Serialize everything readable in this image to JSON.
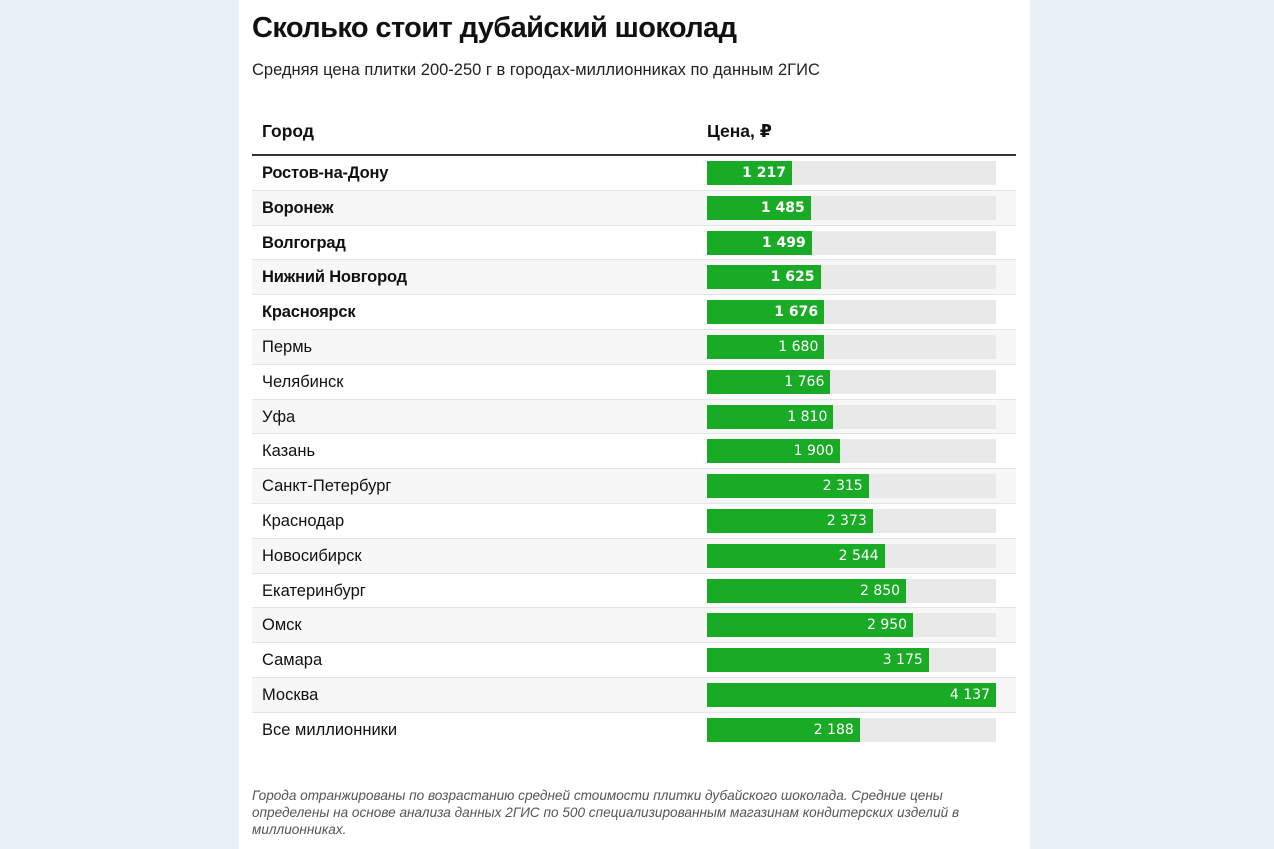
{
  "header": {
    "title": "Сколько стоит дубайский шоколад",
    "subtitle": "Средняя цена плитки 200-250 г в городах-миллионниках по данным 2ГИС"
  },
  "table": {
    "col_city": "Город",
    "col_price": "Цена, ₽"
  },
  "chart_data": {
    "type": "table",
    "title": "Сколько стоит дубайский шоколад",
    "subtitle": "Средняя цена плитки 200-250 г в городах-миллионниках по данным 2ГИС",
    "columns": [
      "Город",
      "Цена, ₽"
    ],
    "xlim": [
      0,
      4137
    ],
    "bar_color": "#1aab26",
    "track_color": "#e9e9e9",
    "rows": [
      {
        "city": "Ростов-на-Дону",
        "value": 1217,
        "label": "1 217",
        "bold": true
      },
      {
        "city": "Воронеж",
        "value": 1485,
        "label": "1 485",
        "bold": true
      },
      {
        "city": "Волгоград",
        "value": 1499,
        "label": "1 499",
        "bold": true
      },
      {
        "city": "Нижний Новгород",
        "value": 1625,
        "label": "1 625",
        "bold": true
      },
      {
        "city": "Красноярск",
        "value": 1676,
        "label": "1 676",
        "bold": true
      },
      {
        "city": "Пермь",
        "value": 1680,
        "label": "1 680",
        "bold": false
      },
      {
        "city": "Челябинск",
        "value": 1766,
        "label": "1 766",
        "bold": false
      },
      {
        "city": "Уфа",
        "value": 1810,
        "label": "1 810",
        "bold": false
      },
      {
        "city": "Казань",
        "value": 1900,
        "label": "1 900",
        "bold": false
      },
      {
        "city": "Санкт-Петербург",
        "value": 2315,
        "label": "2 315",
        "bold": false
      },
      {
        "city": "Краснодар",
        "value": 2373,
        "label": "2 373",
        "bold": false
      },
      {
        "city": "Новосибирск",
        "value": 2544,
        "label": "2 544",
        "bold": false
      },
      {
        "city": "Екатеринбург",
        "value": 2850,
        "label": "2 850",
        "bold": false
      },
      {
        "city": "Омск",
        "value": 2950,
        "label": "2 950",
        "bold": false
      },
      {
        "city": "Самара",
        "value": 3175,
        "label": "3 175",
        "bold": false
      },
      {
        "city": "Москва",
        "value": 4137,
        "label": "4 137",
        "bold": false
      },
      {
        "city": "Все миллионники",
        "value": 2188,
        "label": "2 188",
        "bold": false
      }
    ]
  },
  "footer": {
    "note": "Города отранжированы по возрастанию средней стоимости плитки дубайского шоколада. Средние цены определены на основе анализа данных 2ГИС по 500 специализированным магазинам кондитерских изделий в миллионниках."
  }
}
